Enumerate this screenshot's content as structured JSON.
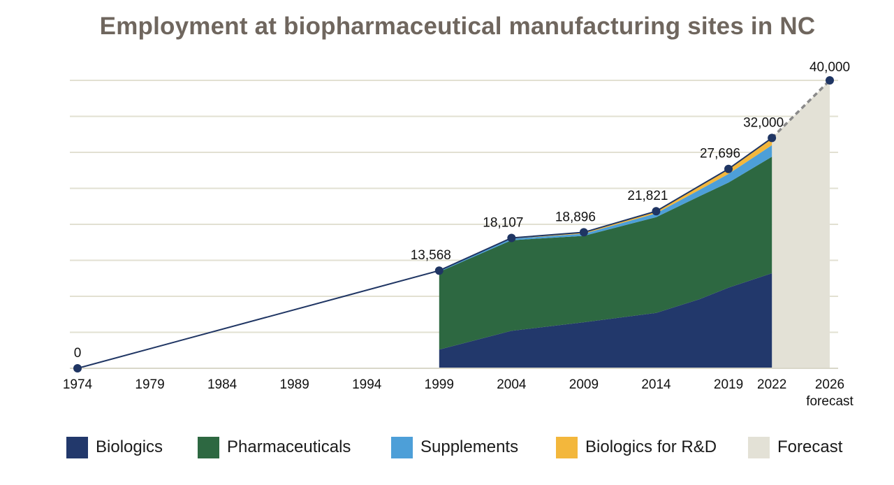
{
  "chart_data": {
    "type": "area",
    "title": "Employment at biopharmaceutical manufacturing sites in NC",
    "x_ticks": [
      "1974",
      "1979",
      "1984",
      "1989",
      "1994",
      "1999",
      "2004",
      "2009",
      "2014",
      "2019",
      "2022",
      "2026"
    ],
    "forecast_sublabel": "forecast",
    "ylim": [
      0,
      40000
    ],
    "grid": true,
    "legend_position": "bottom",
    "total_line": {
      "x": [
        1974,
        1999,
        2004,
        2009,
        2014,
        2019,
        2022
      ],
      "y": [
        0,
        13568,
        18107,
        18896,
        21821,
        27696,
        32000
      ],
      "labels": [
        "0",
        "13,568",
        "18,107",
        "18,896",
        "21,821",
        "27,696",
        "32,000"
      ]
    },
    "forecast_point": {
      "x": 2026,
      "y": 40000,
      "label": "40,000"
    },
    "stack_x": [
      1999,
      2004,
      2009,
      2014,
      2017,
      2019,
      2022
    ],
    "series": [
      {
        "name": "Biologics",
        "color": "#22386b",
        "values": [
          2600,
          5200,
          6400,
          7700,
          9600,
          11200,
          13200
        ]
      },
      {
        "name": "Pharmaceuticals",
        "color": "#2d6841",
        "values": [
          10800,
          12600,
          12000,
          13300,
          14300,
          14600,
          16200
        ]
      },
      {
        "name": "Supplements",
        "color": "#4d9fd8",
        "values": [
          168,
          207,
          296,
          521,
          900,
          1196,
          1600
        ]
      },
      {
        "name": "Biologics for R&D",
        "color": "#f3b73c",
        "values": [
          0,
          100,
          200,
          300,
          500,
          700,
          1000
        ]
      },
      {
        "name": "Forecast",
        "color": "#e3e1d6"
      }
    ],
    "line_color": "#1f3563",
    "forecast_line_color": "#8a8a8a"
  }
}
